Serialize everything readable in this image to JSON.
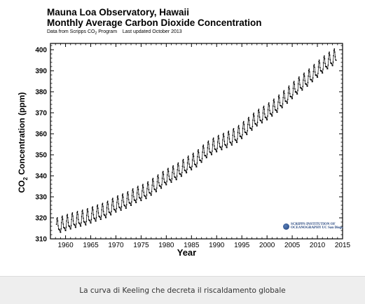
{
  "chart_data": {
    "type": "line",
    "title": "Mauna Loa Observatory, Hawaii",
    "subtitle": "Monthly Average Carbon Dioxide Concentration",
    "source_prefix": "Data from Scripps CO",
    "source_sub": "2",
    "source_suffix": " Program",
    "updated": "Last updated October 2013",
    "xlabel": "Year",
    "ylabel_prefix": "CO",
    "ylabel_sub": "2",
    "ylabel_suffix": " Concentration (ppm)",
    "xlim": [
      1957,
      2015
    ],
    "ylim": [
      310,
      403
    ],
    "x_ticks": [
      "1960",
      "1965",
      "1970",
      "1975",
      "1980",
      "1985",
      "1990",
      "1995",
      "2000",
      "2005",
      "2010",
      "2015"
    ],
    "y_ticks": [
      "310",
      "320",
      "330",
      "340",
      "350",
      "360",
      "370",
      "380",
      "390",
      "400"
    ],
    "grid": false,
    "series": [
      {
        "x": [
          1958,
          1960,
          1962,
          1964,
          1966,
          1968,
          1970,
          1972,
          1974,
          1976,
          1978,
          1980,
          1982,
          1984,
          1986,
          1988,
          1990,
          1992,
          1994,
          1996,
          1998,
          2000,
          2002,
          2004,
          2006,
          2008,
          2010,
          2012,
          2013.75
        ],
        "y": [
          315.3,
          316.9,
          318.4,
          319.6,
          321.4,
          323.0,
          325.7,
          327.5,
          330.2,
          332.1,
          335.4,
          338.7,
          341.1,
          344.4,
          347.2,
          351.6,
          354.4,
          356.4,
          358.8,
          362.6,
          366.7,
          369.6,
          373.2,
          377.5,
          381.9,
          385.6,
          389.9,
          393.9,
          396.5
        ],
        "seasonal_amplitude_ppm": 3.2
      }
    ]
  },
  "logo": {
    "line1": "SCRIPPS INSTITUTION OF",
    "line2": "OCEANOGRAPHY UC San Diego"
  },
  "caption": "La curva di Keeling che decreta il riscaldamento globale"
}
